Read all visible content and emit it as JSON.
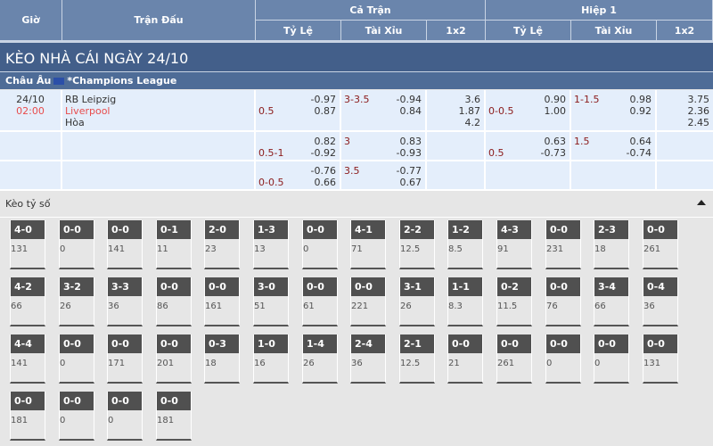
{
  "header": {
    "gio": "Giờ",
    "tran_dau": "Trận Đấu",
    "ca_tran": "Cả Trận",
    "hiep1": "Hiệp 1",
    "ty_le": "Tỷ Lệ",
    "tai_xiu": "Tài Xỉu",
    "x12": "1x2"
  },
  "title": "KÈO NHÀ CÁI NGÀY 24/10",
  "league": {
    "region": "Châu Âu",
    "name": "*Champions League"
  },
  "match": {
    "date": "24/10",
    "time": "02:00",
    "home": "RB Leipzig",
    "away": "Liverpool",
    "draw": "Hòa"
  },
  "rows": [
    {
      "ft_hdp": "0.5",
      "ft_hdp_o": [
        "-0.97",
        "0.87"
      ],
      "ft_ou": "3-3.5",
      "ft_ou_o": [
        "-0.94",
        "0.84"
      ],
      "ft_1x2": [
        "3.6",
        "1.87",
        "4.2"
      ],
      "h1_hdp": "0-0.5",
      "h1_hdp_o": [
        "0.90",
        "1.00"
      ],
      "h1_ou": "1-1.5",
      "h1_ou_o": [
        "0.98",
        "0.92"
      ],
      "h1_1x2": [
        "3.75",
        "2.36",
        "2.45"
      ]
    },
    {
      "ft_hdp": "0.5-1",
      "ft_hdp_o": [
        "0.82",
        "-0.92"
      ],
      "ft_ou": "3",
      "ft_ou_o": [
        "0.83",
        "-0.93"
      ],
      "ft_1x2": [
        "",
        "",
        ""
      ],
      "h1_hdp": "0.5",
      "h1_hdp_o": [
        "0.63",
        "-0.73"
      ],
      "h1_ou": "1.5",
      "h1_ou_o": [
        "0.64",
        "-0.74"
      ],
      "h1_1x2": [
        "",
        "",
        ""
      ]
    },
    {
      "ft_hdp": "0-0.5",
      "ft_hdp_o": [
        "-0.76",
        "0.66"
      ],
      "ft_ou": "3.5",
      "ft_ou_o": [
        "-0.77",
        "0.67"
      ],
      "ft_1x2": [
        "",
        "",
        ""
      ],
      "h1_hdp": "",
      "h1_hdp_o": [
        "",
        ""
      ],
      "h1_ou": "",
      "h1_ou_o": [
        "",
        ""
      ],
      "h1_1x2": [
        "",
        "",
        ""
      ]
    }
  ],
  "scores_title": "Kèo tỷ số",
  "scores": [
    [
      "4-0",
      "131"
    ],
    [
      "0-0",
      "0"
    ],
    [
      "0-0",
      "141"
    ],
    [
      "0-1",
      "11"
    ],
    [
      "2-0",
      "23"
    ],
    [
      "1-3",
      "13"
    ],
    [
      "0-0",
      "0"
    ],
    [
      "4-1",
      "71"
    ],
    [
      "2-2",
      "12.5"
    ],
    [
      "1-2",
      "8.5"
    ],
    [
      "4-3",
      "91"
    ],
    [
      "0-0",
      "231"
    ],
    [
      "2-3",
      "18"
    ],
    [
      "0-0",
      "261"
    ],
    [
      "4-2",
      "66"
    ],
    [
      "3-2",
      "26"
    ],
    [
      "3-3",
      "36"
    ],
    [
      "0-0",
      "86"
    ],
    [
      "0-0",
      "161"
    ],
    [
      "3-0",
      "51"
    ],
    [
      "0-0",
      "61"
    ],
    [
      "0-0",
      "221"
    ],
    [
      "3-1",
      "26"
    ],
    [
      "1-1",
      "8.3"
    ],
    [
      "0-2",
      "11.5"
    ],
    [
      "0-0",
      "76"
    ],
    [
      "3-4",
      "66"
    ],
    [
      "0-4",
      "36"
    ],
    [
      "4-4",
      "141"
    ],
    [
      "0-0",
      "0"
    ],
    [
      "0-0",
      "171"
    ],
    [
      "0-0",
      "201"
    ],
    [
      "0-3",
      "18"
    ],
    [
      "1-0",
      "16"
    ],
    [
      "1-4",
      "26"
    ],
    [
      "2-4",
      "36"
    ],
    [
      "2-1",
      "12.5"
    ],
    [
      "0-0",
      "21"
    ],
    [
      "0-0",
      "261"
    ],
    [
      "0-0",
      "0"
    ],
    [
      "0-0",
      "0"
    ],
    [
      "0-0",
      "131"
    ],
    [
      "0-0",
      "181"
    ],
    [
      "0-0",
      "0"
    ],
    [
      "0-0",
      "0"
    ],
    [
      "0-0",
      "181"
    ]
  ]
}
